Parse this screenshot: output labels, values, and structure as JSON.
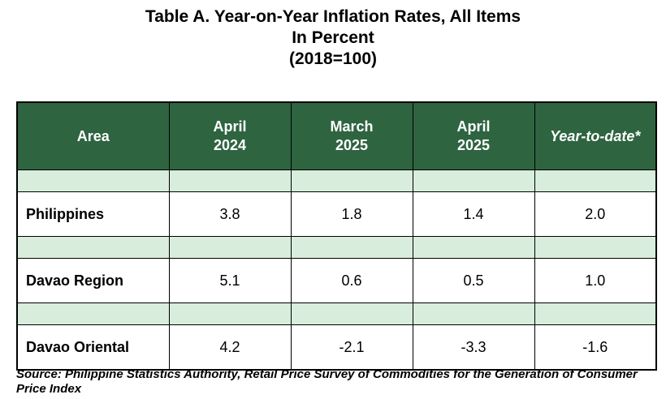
{
  "title": {
    "line1": "Table A. Year-on-Year Inflation Rates, All Items",
    "line2": "In Percent",
    "line3": "(2018=100)"
  },
  "table": {
    "headers": [
      {
        "lines": [
          "Area"
        ]
      },
      {
        "lines": [
          "April",
          "2024"
        ]
      },
      {
        "lines": [
          "March",
          "2025"
        ]
      },
      {
        "lines": [
          "April",
          "2025"
        ]
      },
      {
        "lines": [
          "Year-to-date*"
        ]
      }
    ],
    "rows": [
      {
        "area": "Philippines",
        "apr2024": "3.8",
        "mar2025": "1.8",
        "apr2025": "1.4",
        "ytd": "2.0"
      },
      {
        "area": "Davao Region",
        "apr2024": "5.1",
        "mar2025": "0.6",
        "apr2025": "0.5",
        "ytd": "1.0"
      },
      {
        "area": "Davao Oriental",
        "apr2024": "4.2",
        "mar2025": "-2.1",
        "apr2025": "-3.3",
        "ytd": "-1.6"
      }
    ]
  },
  "source": "Source: Philippine Statistics Authority, Retail Price Survey of Commodities for the Generation of Consumer Price Index",
  "colors": {
    "header_bg": "#2e6440",
    "header_text": "#ffffff",
    "spacer_bg": "#d8eddc"
  }
}
